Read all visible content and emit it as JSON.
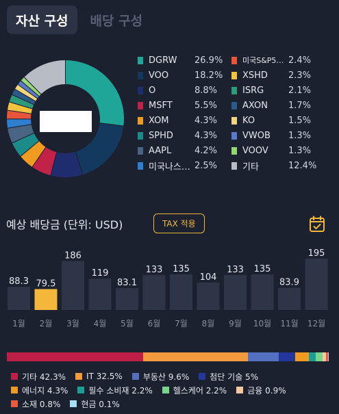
{
  "tabs": [
    {
      "label": "자산 구성",
      "active": true
    },
    {
      "label": "배당 구성",
      "active": false
    }
  ],
  "holdings_left": [
    {
      "name": "DGRW",
      "pct": "26.9%",
      "color": "#1fa698"
    },
    {
      "name": "VOO",
      "pct": "18.2%",
      "color": "#133a5e"
    },
    {
      "name": "O",
      "pct": "8.8%",
      "color": "#1f2c6e"
    },
    {
      "name": "MSFT",
      "pct": "5.5%",
      "color": "#c22247"
    },
    {
      "name": "XOM",
      "pct": "4.3%",
      "color": "#ef9b21"
    },
    {
      "name": "SPHD",
      "pct": "4.3%",
      "color": "#1b8c8a"
    },
    {
      "name": "AAPL",
      "pct": "4.2%",
      "color": "#4a6584"
    },
    {
      "name": "미국나스…",
      "pct": "2.5%",
      "color": "#2e7fd0"
    }
  ],
  "holdings_right": [
    {
      "name": "미국S&P5…",
      "pct": "2.4%",
      "color": "#e8553a"
    },
    {
      "name": "XSHD",
      "pct": "2.3%",
      "color": "#f3c23f"
    },
    {
      "name": "ISRG",
      "pct": "2.1%",
      "color": "#2d9a7b"
    },
    {
      "name": "AXON",
      "pct": "1.7%",
      "color": "#2c5a8a"
    },
    {
      "name": "KO",
      "pct": "1.5%",
      "color": "#f3d57e"
    },
    {
      "name": "VWOB",
      "pct": "1.3%",
      "color": "#5b79c9"
    },
    {
      "name": "VOOV",
      "pct": "1.3%",
      "color": "#93d873"
    },
    {
      "name": "기타",
      "pct": "12.4%",
      "color": "#b8bcc4"
    }
  ],
  "dividend": {
    "title": "예상 배당금 (단위: USD)",
    "tax_button": "TAX 적용"
  },
  "chart_data": {
    "type": "bar",
    "categories": [
      "1월",
      "2월",
      "3월",
      "4월",
      "5월",
      "6월",
      "7월",
      "8월",
      "9월",
      "10월",
      "11월",
      "12월"
    ],
    "values": [
      88.3,
      79.5,
      186,
      119,
      83.1,
      133,
      135,
      104,
      133,
      135,
      83.9,
      195
    ],
    "value_labels": [
      "88.3",
      "79.5",
      "186",
      "119",
      "83.1",
      "133",
      "135",
      "104",
      "133",
      "135",
      "83.9",
      "195"
    ],
    "highlight_index": 1,
    "bar_color": "#2e3547",
    "highlight_color": "#f3b73c"
  },
  "sectors": [
    {
      "name": "기타",
      "pct": "42.3%",
      "value": 42.3,
      "color": "#be1f47"
    },
    {
      "name": "IT",
      "pct": "32.5%",
      "value": 32.5,
      "color": "#f29a3d"
    },
    {
      "name": "부동산",
      "pct": "9.6%",
      "value": 9.6,
      "color": "#5470c0"
    },
    {
      "name": "첨단 기술",
      "pct": "5%",
      "value": 5,
      "color": "#23379a"
    },
    {
      "name": "에너지",
      "pct": "4.3%",
      "value": 4.3,
      "color": "#ef9b21"
    },
    {
      "name": "필수 소비재",
      "pct": "2.2%",
      "value": 2.2,
      "color": "#1b9e95"
    },
    {
      "name": "헬스케어",
      "pct": "2.2%",
      "value": 2.2,
      "color": "#77d68a"
    },
    {
      "name": "금융",
      "pct": "0.9%",
      "value": 0.9,
      "color": "#f9c79b"
    },
    {
      "name": "소재",
      "pct": "0.8%",
      "value": 0.8,
      "color": "#ea5a3c"
    },
    {
      "name": "현금",
      "pct": "0.1%",
      "value": 0.1,
      "color": "#a5dff3"
    }
  ]
}
